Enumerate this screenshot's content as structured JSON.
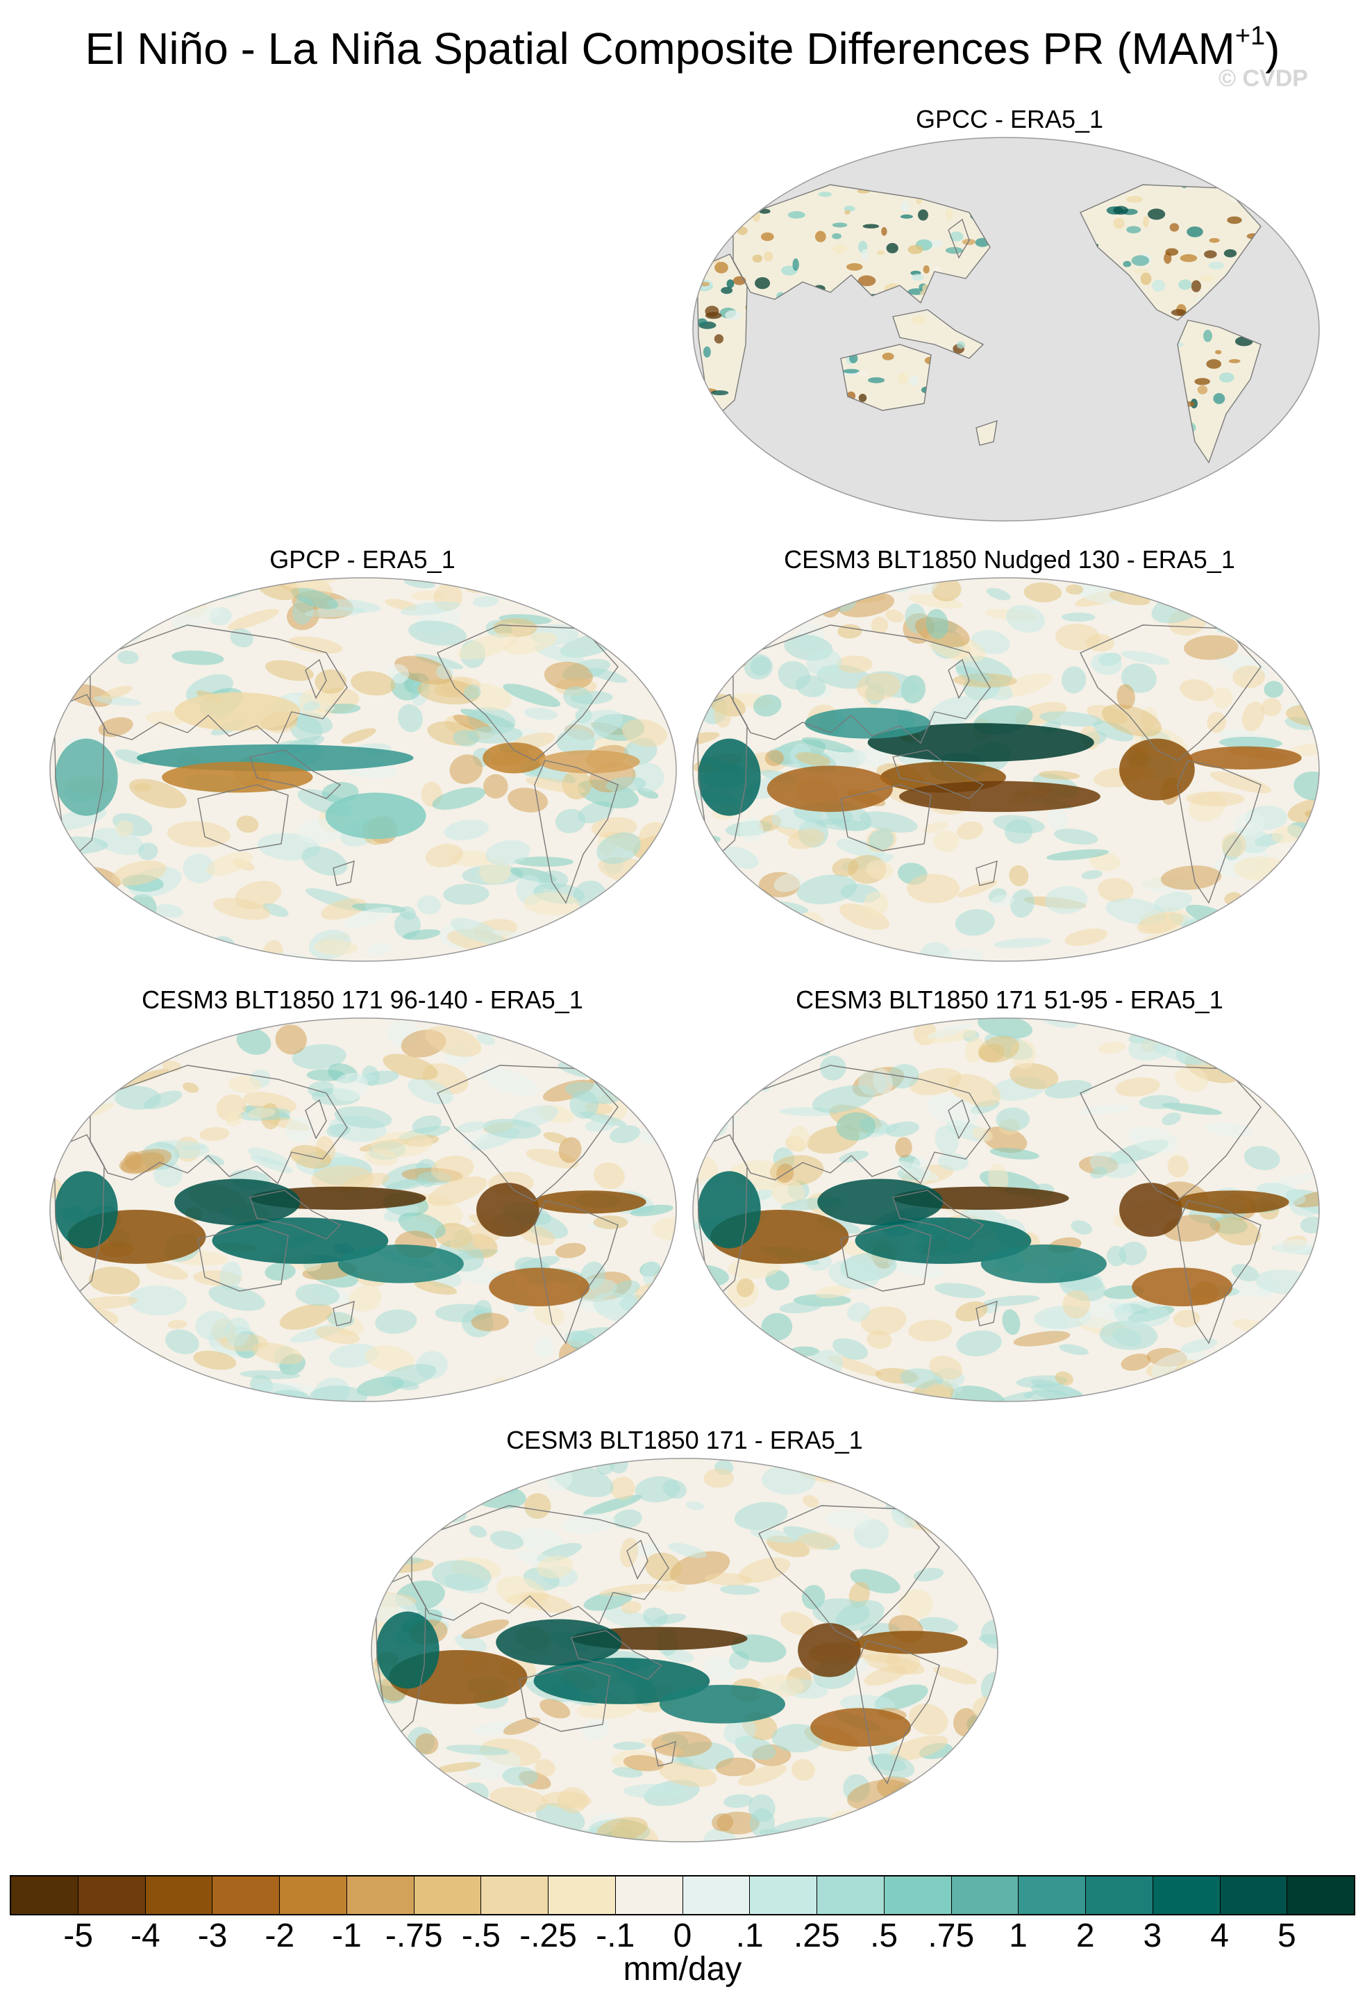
{
  "title": {
    "main": "El Niño - La Niña Spatial Composite Differences PR (MAM",
    "superscript": "+1",
    "close": ")"
  },
  "watermark": "© CVDP",
  "panels": [
    {
      "title": "GPCC - ERA5_1",
      "coverage": "land-only",
      "ocean_color": "#e1e1e1"
    },
    {
      "title": "GPCP - ERA5_1",
      "coverage": "global",
      "tropical_pacific_signal": "weak"
    },
    {
      "title": "CESM3 BLT1850 Nudged 130 - ERA5_1",
      "coverage": "global",
      "tropical_pacific_signal": "strong-positive"
    },
    {
      "title": "CESM3 BLT1850 171 96-140 - ERA5_1",
      "coverage": "global",
      "tropical_pacific_signal": "strong-negative"
    },
    {
      "title": "CESM3 BLT1850 171 51-95 - ERA5_1",
      "coverage": "global",
      "tropical_pacific_signal": "strong-negative"
    },
    {
      "title": "CESM3 BLT1850 171 - ERA5_1",
      "coverage": "global",
      "tropical_pacific_signal": "strong-negative"
    }
  ],
  "projection": "Robinson, Pacific-centered",
  "colorbar": {
    "labels": [
      "-5",
      "-4",
      "-3",
      "-2",
      "-1",
      "-.75",
      "-.5",
      "-.25",
      "-.1",
      "0",
      ".1",
      ".25",
      ".5",
      ".75",
      "1",
      "2",
      "3",
      "4",
      "5"
    ],
    "colors": [
      "#543005",
      "#6f3d0b",
      "#8c510a",
      "#a8651c",
      "#bf812d",
      "#d3a25a",
      "#e2c27d",
      "#f0d9a8",
      "#f6e8c3",
      "#f5f1e8",
      "#e6f2ef",
      "#c7eae5",
      "#a8ddd5",
      "#80cdc1",
      "#5fb3a8",
      "#35978f",
      "#1c7f77",
      "#01665e",
      "#01524a",
      "#003c30"
    ],
    "units": "mm/day"
  }
}
